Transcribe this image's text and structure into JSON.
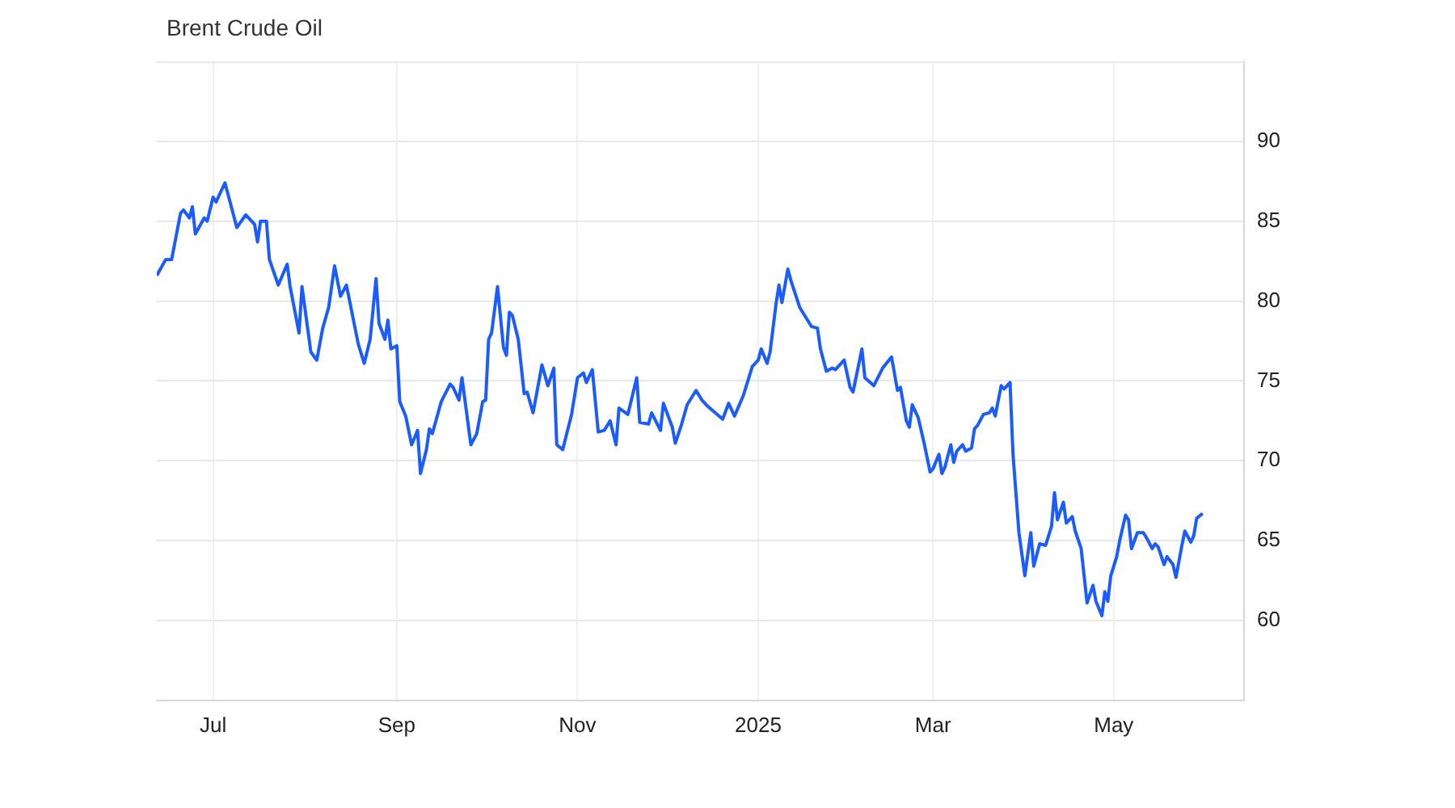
{
  "chart_data": {
    "type": "line",
    "title": "Brent Crude Oil",
    "x": [
      "2024-06-12",
      "2024-06-15",
      "2024-06-17",
      "2024-06-20",
      "2024-06-21",
      "2024-06-23",
      "2024-06-24",
      "2024-06-25",
      "2024-06-28",
      "2024-06-29",
      "2024-07-01",
      "2024-07-02",
      "2024-07-05",
      "2024-07-09",
      "2024-07-12",
      "2024-07-15",
      "2024-07-16",
      "2024-07-17",
      "2024-07-19",
      "2024-07-20",
      "2024-07-23",
      "2024-07-26",
      "2024-07-27",
      "2024-07-30",
      "2024-07-31",
      "2024-08-03",
      "2024-08-05",
      "2024-08-07",
      "2024-08-09",
      "2024-08-11",
      "2024-08-13",
      "2024-08-15",
      "2024-08-19",
      "2024-08-21",
      "2024-08-23",
      "2024-08-25",
      "2024-08-26",
      "2024-08-28",
      "2024-08-29",
      "2024-08-30",
      "2024-09-01",
      "2024-09-02",
      "2024-09-04",
      "2024-09-06",
      "2024-09-08",
      "2024-09-09",
      "2024-09-11",
      "2024-09-12",
      "2024-09-13",
      "2024-09-16",
      "2024-09-19",
      "2024-09-20",
      "2024-09-22",
      "2024-09-23",
      "2024-09-26",
      "2024-09-28",
      "2024-09-30",
      "2024-10-01",
      "2024-10-02",
      "2024-10-03",
      "2024-10-05",
      "2024-10-07",
      "2024-10-08",
      "2024-10-09",
      "2024-10-10",
      "2024-10-12",
      "2024-10-14",
      "2024-10-15",
      "2024-10-17",
      "2024-10-20",
      "2024-10-22",
      "2024-10-24",
      "2024-10-25",
      "2024-10-27",
      "2024-10-30",
      "2024-11-01",
      "2024-11-03",
      "2024-11-04",
      "2024-11-06",
      "2024-11-08",
      "2024-11-10",
      "2024-11-12",
      "2024-11-14",
      "2024-11-15",
      "2024-11-18",
      "2024-11-21",
      "2024-11-22",
      "2024-11-25",
      "2024-11-26",
      "2024-11-29",
      "2024-11-30",
      "2024-12-03",
      "2024-12-04",
      "2024-12-06",
      "2024-12-08",
      "2024-12-11",
      "2024-12-13",
      "2024-12-15",
      "2024-12-20",
      "2024-12-22",
      "2024-12-24",
      "2024-12-27",
      "2024-12-30",
      "2025-01-01",
      "2025-01-02",
      "2025-01-04",
      "2025-01-05",
      "2025-01-07",
      "2025-01-08",
      "2025-01-09",
      "2025-01-11",
      "2025-01-12",
      "2025-01-15",
      "2025-01-19",
      "2025-01-21",
      "2025-01-22",
      "2025-01-24",
      "2025-01-26",
      "2025-01-27",
      "2025-01-30",
      "2025-02-01",
      "2025-02-02",
      "2025-02-05",
      "2025-02-06",
      "2025-02-09",
      "2025-02-12",
      "2025-02-15",
      "2025-02-17",
      "2025-02-18",
      "2025-02-20",
      "2025-02-21",
      "2025-02-22",
      "2025-02-24",
      "2025-02-26",
      "2025-02-28",
      "2025-03-01",
      "2025-03-03",
      "2025-03-04",
      "2025-03-05",
      "2025-03-07",
      "2025-03-08",
      "2025-03-09",
      "2025-03-11",
      "2025-03-12",
      "2025-03-14",
      "2025-03-15",
      "2025-03-16",
      "2025-03-18",
      "2025-03-20",
      "2025-03-21",
      "2025-03-22",
      "2025-03-24",
      "2025-03-25",
      "2025-03-27",
      "2025-03-28",
      "2025-03-30",
      "2025-04-01",
      "2025-04-03",
      "2025-04-04",
      "2025-04-06",
      "2025-04-08",
      "2025-04-10",
      "2025-04-11",
      "2025-04-12",
      "2025-04-14",
      "2025-04-15",
      "2025-04-17",
      "2025-04-18",
      "2025-04-20",
      "2025-04-21",
      "2025-04-22",
      "2025-04-24",
      "2025-04-25",
      "2025-04-27",
      "2025-04-28",
      "2025-04-29",
      "2025-04-30",
      "2025-05-02",
      "2025-05-03",
      "2025-05-05",
      "2025-05-06",
      "2025-05-07",
      "2025-05-09",
      "2025-05-11",
      "2025-05-12",
      "2025-05-14",
      "2025-05-15",
      "2025-05-16",
      "2025-05-18",
      "2025-05-19",
      "2025-05-21",
      "2025-05-22",
      "2025-05-24",
      "2025-05-25",
      "2025-05-27",
      "2025-05-28",
      "2025-05-29",
      "2025-05-31"
    ],
    "series": [
      {
        "color": "#1a5cff",
        "values": [
          81.6,
          82.6,
          82.6,
          85.5,
          85.7,
          85.2,
          85.9,
          84.2,
          85.2,
          85.0,
          86.5,
          86.2,
          87.4,
          84.6,
          85.4,
          84.8,
          83.7,
          85.0,
          85.0,
          82.6,
          81.0,
          82.3,
          80.9,
          78.0,
          80.9,
          76.8,
          76.3,
          78.3,
          79.6,
          82.2,
          80.3,
          81.0,
          77.3,
          76.1,
          77.6,
          81.4,
          78.6,
          77.6,
          78.8,
          77.0,
          77.2,
          73.7,
          72.8,
          71.0,
          71.9,
          69.2,
          70.7,
          72.0,
          71.7,
          73.7,
          74.8,
          74.6,
          73.8,
          75.2,
          71.0,
          71.7,
          73.7,
          73.8,
          77.6,
          78.0,
          80.9,
          77.1,
          76.6,
          79.3,
          79.1,
          77.6,
          74.2,
          74.3,
          73.0,
          76.0,
          74.7,
          75.8,
          71.0,
          70.7,
          72.9,
          75.2,
          75.5,
          74.9,
          75.7,
          71.8,
          71.9,
          72.5,
          71.0,
          73.3,
          72.9,
          75.2,
          72.4,
          72.3,
          73.0,
          71.9,
          73.6,
          72.1,
          71.1,
          72.2,
          73.5,
          74.4,
          73.8,
          73.4,
          72.6,
          73.6,
          72.8,
          74.1,
          75.9,
          76.3,
          77.0,
          76.1,
          76.8,
          79.8,
          81.0,
          79.9,
          82.0,
          81.3,
          79.6,
          78.4,
          78.3,
          77.0,
          75.6,
          75.8,
          75.7,
          76.3,
          74.6,
          74.3,
          77.0,
          75.2,
          74.7,
          75.8,
          76.5,
          74.4,
          74.6,
          72.5,
          72.1,
          73.5,
          72.7,
          71.1,
          69.3,
          69.5,
          70.4,
          69.2,
          69.6,
          71.0,
          69.9,
          70.6,
          71.0,
          70.6,
          70.8,
          72.0,
          72.2,
          72.9,
          73.0,
          73.3,
          72.8,
          74.7,
          74.5,
          74.9,
          70.4,
          65.5,
          62.8,
          65.5,
          63.4,
          64.8,
          64.7,
          65.9,
          68.0,
          66.3,
          67.4,
          66.1,
          66.5,
          65.6,
          64.5,
          62.8,
          61.1,
          62.2,
          61.2,
          60.3,
          61.8,
          61.2,
          62.8,
          64.0,
          65.0,
          66.6,
          66.3,
          64.5,
          65.5,
          65.5,
          65.2,
          64.5,
          64.8,
          64.6,
          63.5,
          64.0,
          63.5,
          62.7,
          64.7,
          65.6,
          64.9,
          65.3,
          66.4,
          66.7
        ]
      }
    ],
    "xlim": [
      "2024-06-12",
      "2025-06-14"
    ],
    "xticks": [
      {
        "value": "2024-07-01",
        "label": "Jul"
      },
      {
        "value": "2024-09-01",
        "label": "Sep"
      },
      {
        "value": "2024-11-01",
        "label": "Nov"
      },
      {
        "value": "2025-01-01",
        "label": "2025"
      },
      {
        "value": "2025-03-01",
        "label": "Mar"
      },
      {
        "value": "2025-05-01",
        "label": "May"
      }
    ],
    "ylim": [
      55,
      95
    ],
    "yticks": [
      60,
      65,
      70,
      75,
      80,
      85,
      90
    ],
    "grid": true,
    "legend": false,
    "marker": "none",
    "line_style": "solid"
  }
}
